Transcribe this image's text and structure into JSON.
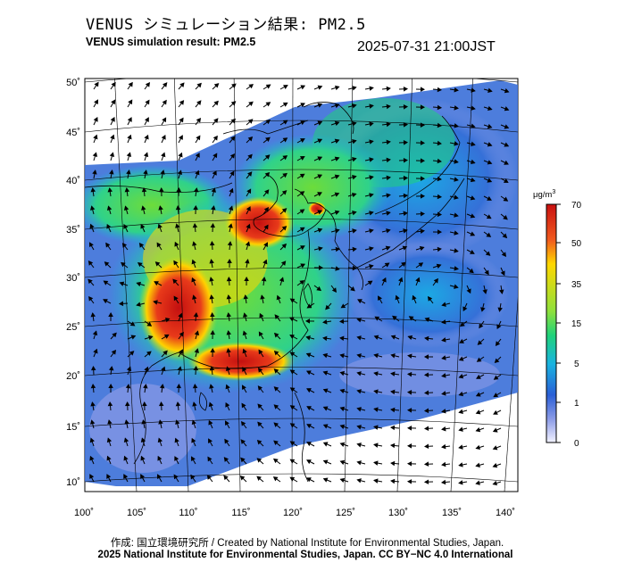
{
  "header": {
    "title_jp": "VENUS シミュレーション結果: PM2.5",
    "title_en": "VENUS simulation result: PM2.5",
    "timestamp": "2025-07-31 21:00JST"
  },
  "map": {
    "lon_labels": [
      "100˚",
      "105˚",
      "110˚",
      "115˚",
      "120˚",
      "125˚",
      "130˚",
      "135˚",
      "140˚"
    ],
    "lat_labels": [
      "50˚",
      "45˚",
      "40˚",
      "35˚",
      "30˚",
      "25˚",
      "20˚",
      "15˚",
      "10˚"
    ],
    "lon_range": [
      100,
      140
    ],
    "lat_range": [
      10,
      50
    ],
    "colors": {
      "ocean": "#ffffff",
      "land_outline": "#000000",
      "arrows": "#000000"
    }
  },
  "colorbar": {
    "unit_base": "μg/m",
    "unit_exp": "3",
    "ticks": [
      "70",
      "50",
      "35",
      "15",
      "5",
      "1",
      "0"
    ],
    "colors": [
      "#c81010",
      "#f05a1e",
      "#ffd700",
      "#8ee03c",
      "#1fd27a",
      "#19b3e0",
      "#2a5fd6",
      "#8a9ae6",
      "#f2f2ff"
    ]
  },
  "footer": {
    "credit_line": "作成: 国立環境研究所 / Created by National Institute for Environmental Studies, Japan.",
    "license_line": "2025 National Institute for Environmental Studies, Japan. CC BY−NC 4.0 International"
  }
}
